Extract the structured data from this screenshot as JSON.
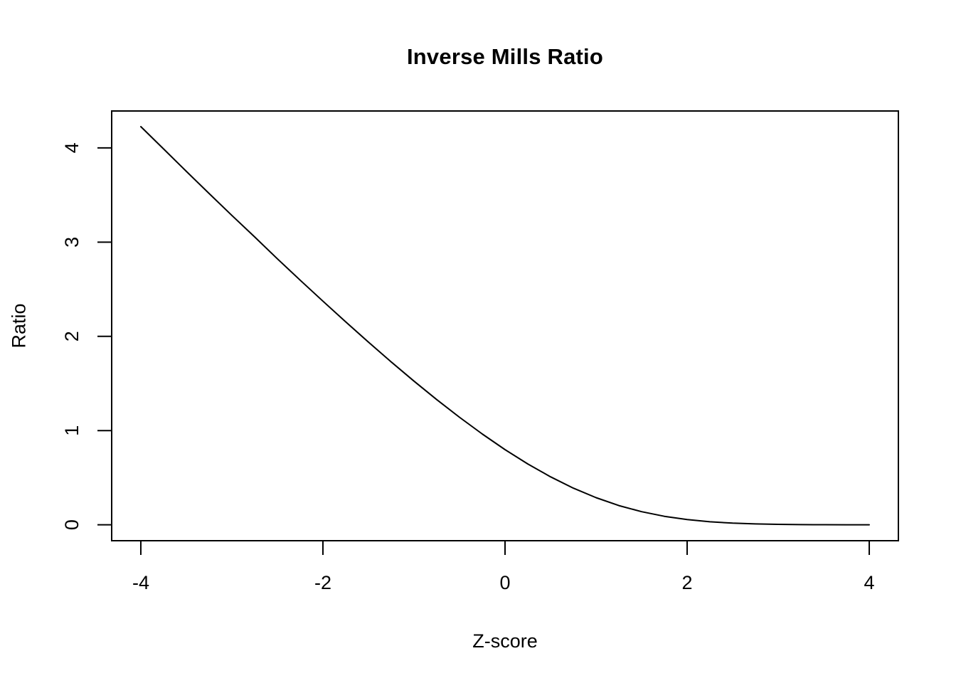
{
  "figure": {
    "background_color": "#ffffff",
    "foreground_color": "#000000"
  },
  "chart_data": {
    "type": "line",
    "title": "Inverse Mills Ratio",
    "xlabel": "Z-score",
    "ylabel": "Ratio",
    "xlim": [
      -4.32,
      4.32
    ],
    "ylim": [
      -0.169,
      4.392
    ],
    "x_ticks": [
      -4,
      -2,
      0,
      2,
      4
    ],
    "x_tick_labels": [
      "-4",
      "-2",
      "0",
      "2",
      "4"
    ],
    "y_ticks": [
      0,
      1,
      2,
      3,
      4
    ],
    "y_tick_labels": [
      "0",
      "1",
      "2",
      "3",
      "4"
    ],
    "grid": false,
    "legend": false,
    "box": true,
    "line_color": "#000000",
    "line_width": 2,
    "series": [
      {
        "name": "inverse_mills_ratio",
        "x": [
          -4,
          -3.75,
          -3.5,
          -3.25,
          -3,
          -2.75,
          -2.5,
          -2.25,
          -2,
          -1.75,
          -1.5,
          -1.25,
          -1,
          -0.75,
          -0.5,
          -0.25,
          0,
          0.25,
          0.5,
          0.75,
          1,
          1.25,
          1.5,
          1.75,
          2,
          2.25,
          2.5,
          2.75,
          3,
          3.25,
          3.5,
          3.75,
          4
        ],
        "y": [
          4.2256,
          3.9889,
          3.7511,
          3.5164,
          3.2831,
          3.0551,
          2.8227,
          2.5964,
          2.3732,
          2.1538,
          1.9387,
          1.7288,
          1.5251,
          1.3288,
          1.1411,
          0.9636,
          0.7979,
          0.6459,
          0.5092,
          0.3894,
          0.2876,
          0.2042,
          0.1388,
          0.0899,
          0.0552,
          0.0321,
          0.0176,
          0.0091,
          0.0044,
          0.002,
          0.0009,
          0.0004,
          0.0001
        ]
      }
    ]
  }
}
